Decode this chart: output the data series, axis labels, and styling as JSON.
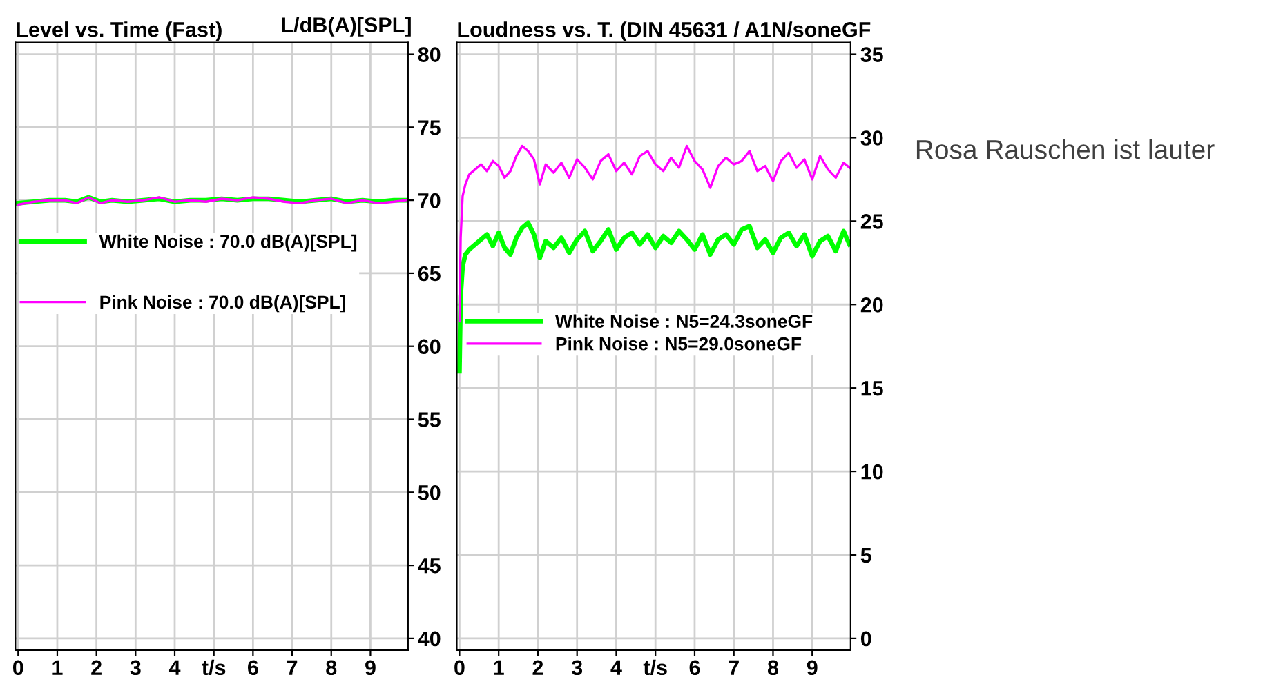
{
  "chart_data": [
    {
      "type": "line",
      "title": "Level vs. Time (Fast)",
      "ylabel": "L/dB(A)[SPL]",
      "xlim": [
        -0.07,
        9.96
      ],
      "xticks": [
        0,
        1,
        2,
        3,
        4,
        {
          "value": 5,
          "label": "t/s"
        },
        6,
        7,
        8,
        9
      ],
      "ylim": [
        39.2,
        80.8
      ],
      "yticks": [
        40,
        45,
        50,
        55,
        60,
        65,
        70,
        75,
        80
      ],
      "grid": true,
      "legend": "left",
      "marker": "none",
      "line_style": "solid",
      "x": [
        0,
        0.4,
        0.8,
        1.2,
        1.5,
        1.8,
        2.1,
        2.4,
        2.8,
        3.2,
        3.6,
        4.0,
        4.4,
        4.8,
        5.2,
        5.6,
        6.0,
        6.4,
        6.8,
        7.2,
        7.6,
        8.0,
        8.4,
        8.8,
        9.2,
        9.6,
        9.9
      ],
      "series": [
        {
          "name": "White Noise : 70.0 dB(A)[SPL]",
          "color": "#00ff00",
          "values": [
            69.8,
            69.9,
            70.0,
            70.0,
            69.9,
            70.2,
            69.9,
            70.0,
            69.9,
            70.0,
            70.1,
            69.9,
            70.0,
            70.0,
            70.1,
            70.0,
            70.1,
            70.1,
            70.0,
            69.9,
            70.0,
            70.1,
            69.9,
            70.0,
            69.9,
            70.0,
            70.0
          ]
        },
        {
          "name": "Pink Noise : 70.0 dB(A)[SPL]",
          "color": "#ff00ff",
          "values": [
            69.7,
            69.9,
            70.0,
            70.0,
            69.8,
            70.2,
            69.8,
            70.0,
            69.9,
            70.0,
            70.2,
            69.9,
            70.0,
            69.9,
            70.1,
            70.0,
            70.2,
            70.1,
            69.9,
            69.8,
            70.0,
            70.1,
            69.8,
            70.0,
            69.8,
            69.9,
            70.0
          ]
        }
      ]
    },
    {
      "type": "line",
      "title": "Loudness vs. T. (DIN 45631 / A1N/soneGF",
      "xlim": [
        -0.07,
        9.98
      ],
      "xticks": [
        0,
        1,
        2,
        3,
        4,
        {
          "value": 5,
          "label": "t/s"
        },
        6,
        7,
        8,
        9
      ],
      "ylim": [
        -0.7,
        35.7
      ],
      "yticks": [
        0,
        5,
        10,
        15,
        20,
        25,
        30,
        35
      ],
      "grid": true,
      "legend": "left",
      "marker": "none",
      "line_style": "solid",
      "x": [
        0,
        0.03,
        0.08,
        0.15,
        0.25,
        0.4,
        0.55,
        0.7,
        0.85,
        1.0,
        1.15,
        1.3,
        1.45,
        1.6,
        1.75,
        1.9,
        2.05,
        2.2,
        2.4,
        2.6,
        2.8,
        3.0,
        3.2,
        3.4,
        3.6,
        3.8,
        4.0,
        4.2,
        4.4,
        4.6,
        4.8,
        5.0,
        5.2,
        5.4,
        5.6,
        5.8,
        6.0,
        6.2,
        6.4,
        6.6,
        6.8,
        7.0,
        7.2,
        7.4,
        7.6,
        7.8,
        8.0,
        8.2,
        8.4,
        8.6,
        8.8,
        9.0,
        9.2,
        9.4,
        9.6,
        9.8,
        9.95
      ],
      "series": [
        {
          "name": "White Noise : N5=24.3soneGF",
          "color": "#00ff00",
          "values": [
            16.0,
            20.5,
            22.3,
            23.0,
            23.3,
            23.6,
            23.9,
            24.2,
            23.5,
            24.3,
            23.4,
            23.0,
            24.0,
            24.6,
            24.9,
            24.2,
            22.8,
            23.8,
            23.4,
            24.0,
            23.1,
            23.9,
            24.4,
            23.2,
            23.8,
            24.5,
            23.3,
            24.0,
            24.3,
            23.6,
            24.2,
            23.4,
            24.1,
            23.7,
            24.4,
            23.9,
            23.3,
            24.2,
            23.0,
            23.9,
            24.2,
            23.6,
            24.5,
            24.7,
            23.4,
            23.9,
            23.1,
            24.0,
            24.3,
            23.5,
            24.2,
            22.9,
            23.8,
            24.1,
            23.2,
            24.4,
            23.6
          ]
        },
        {
          "name": "Pink Noise : N5=29.0soneGF",
          "color": "#ff00ff",
          "values": [
            19.0,
            24.0,
            26.5,
            27.2,
            27.8,
            28.1,
            28.4,
            28.0,
            28.6,
            28.3,
            27.6,
            28.0,
            28.9,
            29.5,
            29.2,
            28.7,
            27.2,
            28.4,
            27.9,
            28.5,
            27.6,
            28.7,
            28.2,
            27.5,
            28.6,
            29.0,
            28.0,
            28.5,
            27.8,
            28.9,
            29.2,
            28.4,
            28.0,
            28.8,
            28.2,
            29.5,
            28.6,
            28.1,
            27.0,
            28.3,
            28.8,
            28.4,
            28.6,
            29.2,
            28.0,
            28.3,
            27.4,
            28.6,
            29.1,
            28.2,
            28.7,
            27.5,
            28.9,
            28.1,
            27.6,
            28.5,
            28.2
          ]
        }
      ]
    },
    {
      "type": "other",
      "annotations": [
        "Rosa Rauschen ist lauter"
      ]
    }
  ]
}
